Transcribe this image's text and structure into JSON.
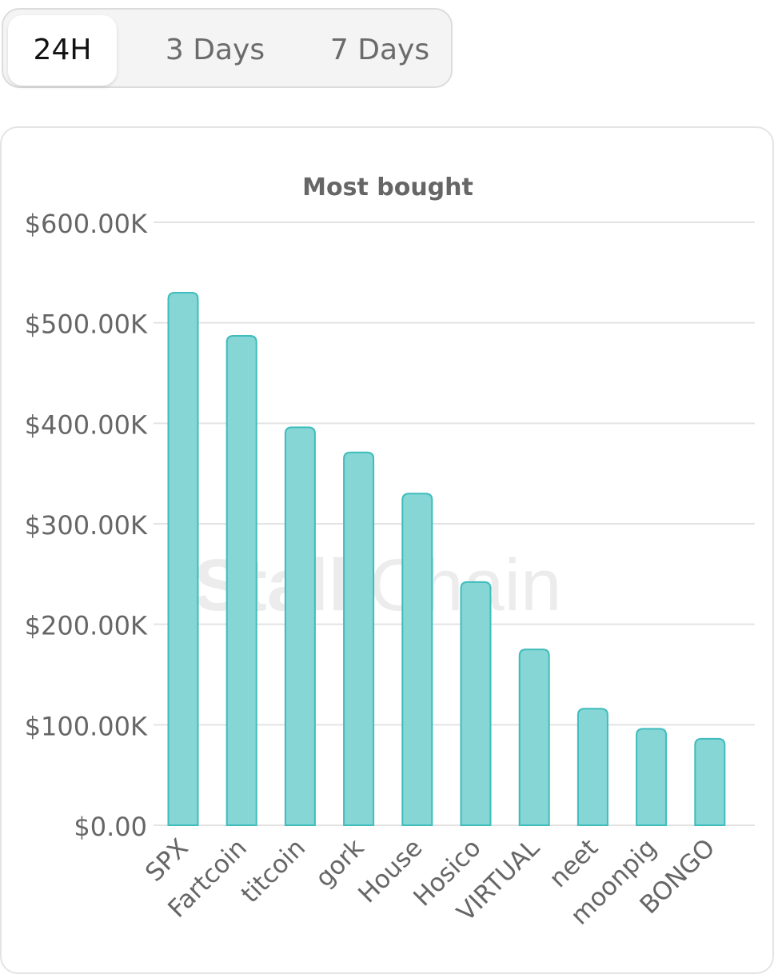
{
  "tabs": {
    "items": [
      "24H",
      "3 Days",
      "7 Days"
    ],
    "active_index": 0
  },
  "watermark": {
    "bold_part": "Stalk",
    "light_part": "Chain"
  },
  "chart_data": {
    "type": "bar",
    "title": "Most bought",
    "categories": [
      "SPX",
      "Fartcoin",
      "titcoin",
      "gork",
      "House",
      "Hosico",
      "VIRTUAL",
      "neet",
      "moonpig",
      "BONGO"
    ],
    "values": [
      530000,
      487000,
      396000,
      371000,
      330000,
      242000,
      175000,
      116000,
      96000,
      86000
    ],
    "yticks": [
      0,
      100000,
      200000,
      300000,
      400000,
      500000,
      600000
    ],
    "ytick_labels": [
      "$0.00",
      "$100.00K",
      "$200.00K",
      "$300.00K",
      "$400.00K",
      "$500.00K",
      "$600.00K"
    ],
    "ylim": [
      0,
      600000
    ],
    "xlabel": "",
    "ylabel": "",
    "grid": true,
    "legend": "none",
    "colors": {
      "bar_fill": "#86d6d6",
      "bar_stroke": "#3fbcbc",
      "grid": "#e3e3e3",
      "tick_text": "#666666",
      "title_text": "#666666"
    }
  }
}
